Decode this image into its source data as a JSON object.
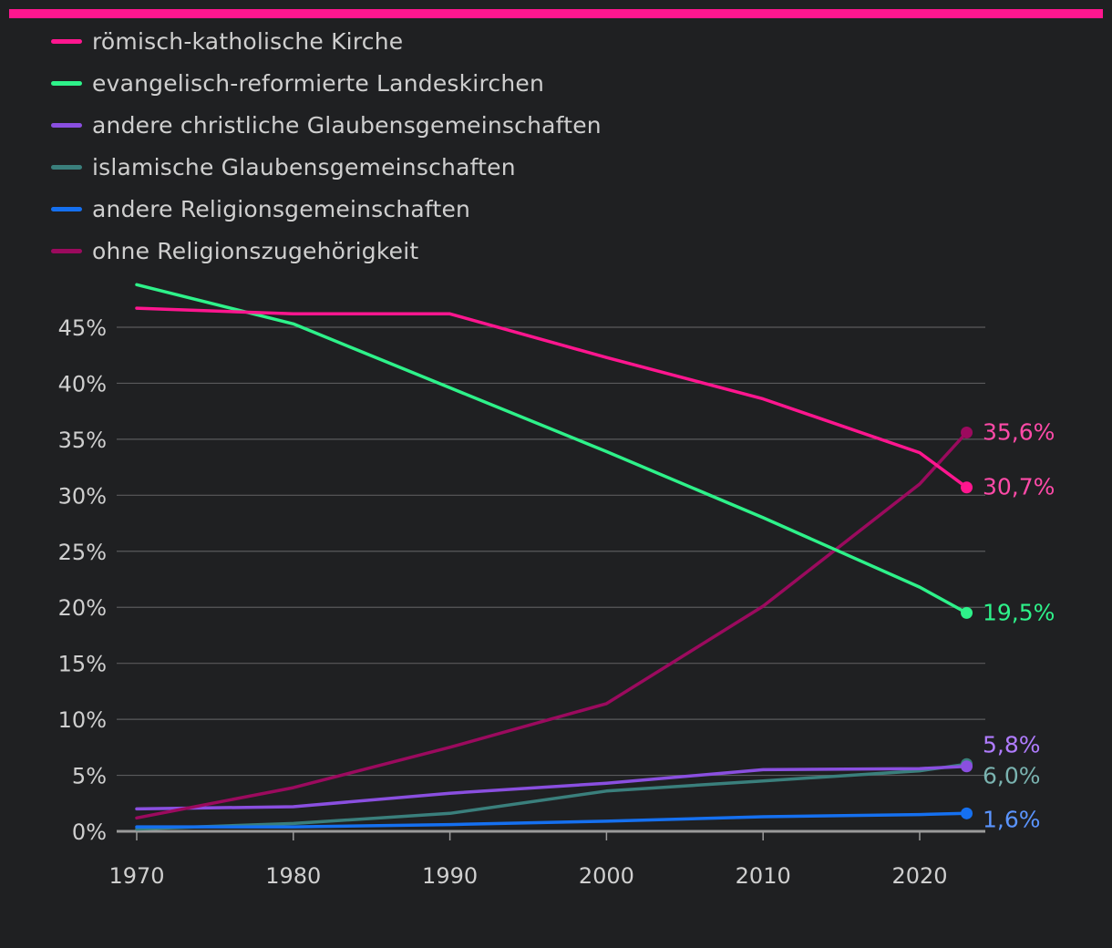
{
  "colors": {
    "accent_bar": "#ff168f",
    "background": "#1f2022",
    "grid": "#5a5a5c",
    "axis": "#9a9a9a",
    "text": "#cfcfcf"
  },
  "chart_data": {
    "type": "line",
    "title": "",
    "xlabel": "",
    "ylabel": "",
    "xlim": [
      1970,
      2023
    ],
    "ylim": [
      0,
      45
    ],
    "x_ticks": [
      1970,
      1980,
      1990,
      2000,
      2010,
      2020
    ],
    "x_tick_labels": [
      "1970",
      "1980",
      "1990",
      "2000",
      "2010",
      "2020"
    ],
    "y_ticks": [
      0,
      5,
      10,
      15,
      20,
      25,
      30,
      35,
      40,
      45
    ],
    "y_tick_labels": [
      "0%",
      "5%",
      "10%",
      "15%",
      "20%",
      "25%",
      "30%",
      "35%",
      "40%",
      "45%"
    ],
    "grid": true,
    "legend_position": "top-left",
    "series": [
      {
        "key": "rk",
        "name": "römisch-katholische Kirche",
        "color": "#ff168f",
        "label_color": "#ff4aa8",
        "x": [
          1970,
          1980,
          1990,
          2000,
          2010,
          2020,
          2023
        ],
        "values": [
          46.7,
          46.2,
          46.2,
          42.3,
          38.6,
          33.8,
          30.7
        ],
        "end_label": "30,7%"
      },
      {
        "key": "ev",
        "name": "evangelisch-reformierte Landeskirchen",
        "color": "#2ef28a",
        "label_color": "#2ef28a",
        "x": [
          1970,
          1980,
          1990,
          2000,
          2010,
          2020,
          2023
        ],
        "values": [
          48.8,
          45.3,
          39.6,
          33.9,
          28.0,
          21.8,
          19.5
        ],
        "end_label": "19,5%"
      },
      {
        "key": "ch",
        "name": "andere christliche Glaubensgemeinschaften",
        "color": "#8a4fe0",
        "label_color": "#b07cff",
        "x": [
          1970,
          1980,
          1990,
          2000,
          2010,
          2020,
          2023
        ],
        "values": [
          2.0,
          2.2,
          3.4,
          4.3,
          5.5,
          5.6,
          5.8
        ],
        "end_label": "5,8%"
      },
      {
        "key": "is",
        "name": "islamische Glaubensgemeinschaften",
        "color": "#3a7f7c",
        "label_color": "#7ab3b0",
        "x": [
          1970,
          1980,
          1990,
          2000,
          2010,
          2020,
          2023
        ],
        "values": [
          0.2,
          0.7,
          1.6,
          3.6,
          4.5,
          5.4,
          6.0
        ],
        "end_label": "6,0%"
      },
      {
        "key": "an",
        "name": "andere Religionsgemeinschaften",
        "color": "#1570f0",
        "label_color": "#5a94ff",
        "x": [
          1970,
          1980,
          1990,
          2000,
          2010,
          2020,
          2023
        ],
        "values": [
          0.4,
          0.4,
          0.6,
          0.9,
          1.3,
          1.5,
          1.6
        ],
        "end_label": "1,6%"
      },
      {
        "key": "oh",
        "name": "ohne Religionszugehörigkeit",
        "color": "#9b0a5e",
        "label_color": "#ff4aa8",
        "x": [
          1970,
          1980,
          1990,
          2000,
          2010,
          2020,
          2023
        ],
        "values": [
          1.2,
          3.9,
          7.5,
          11.4,
          20.1,
          31.0,
          35.6
        ],
        "end_label": "35,6%"
      }
    ]
  }
}
